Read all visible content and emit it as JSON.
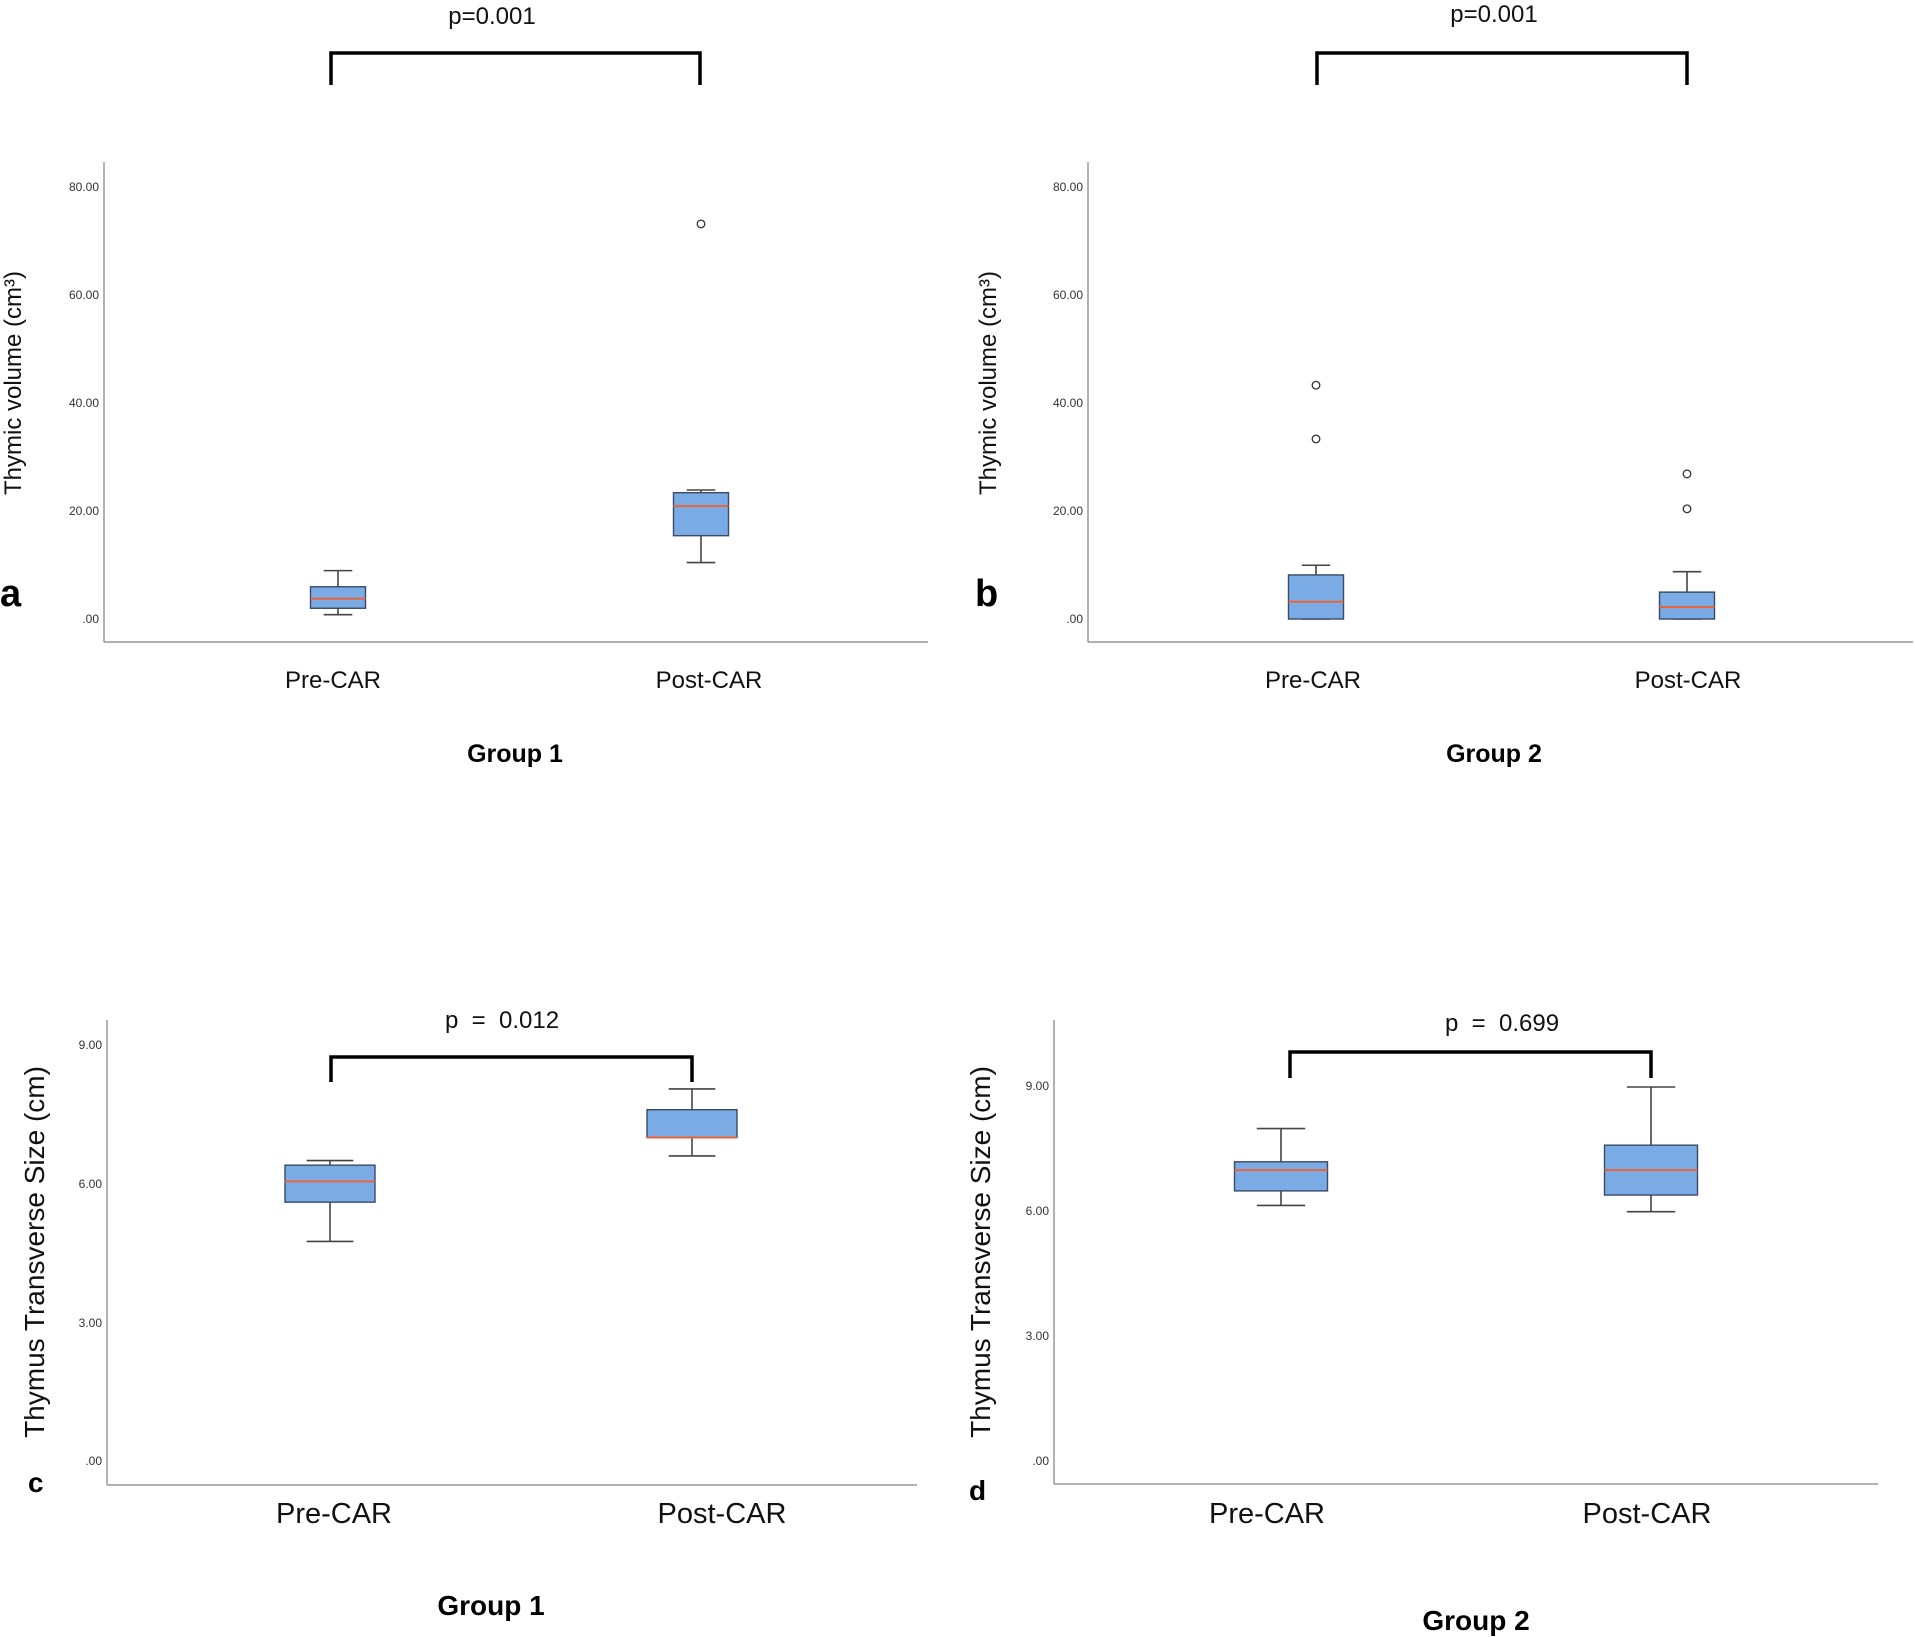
{
  "chart_data": [
    {
      "panel": "a",
      "type": "box",
      "ylabel": "Thymic volume (cm³)",
      "xlabel": "Group 1",
      "ylim": [
        0,
        80
      ],
      "yticks": [
        0,
        20,
        40,
        60,
        80
      ],
      "ytick_labels": [
        ".00",
        "20.00",
        "40.00",
        "60.00",
        "80.00"
      ],
      "categories": [
        "Pre-CAR",
        "Post-CAR"
      ],
      "boxes": [
        {
          "min": 0.8,
          "q1": 2.0,
          "median": 3.8,
          "q3": 6.0,
          "max": 9.0,
          "outliers": []
        },
        {
          "min": 10.5,
          "q1": 15.5,
          "median": 21.0,
          "q3": 23.5,
          "max": 24.0,
          "outliers": [
            73.5
          ]
        }
      ],
      "annotation": "p=0.001"
    },
    {
      "panel": "b",
      "type": "box",
      "ylabel": "Thymic volume (cm³)",
      "xlabel": "Group 2",
      "ylim": [
        0,
        80
      ],
      "yticks": [
        0,
        20,
        40,
        60,
        80
      ],
      "ytick_labels": [
        ".00",
        "20.00",
        "40.00",
        "60.00",
        "80.00"
      ],
      "categories": [
        "Pre-CAR",
        "Post-CAR"
      ],
      "boxes": [
        {
          "min": 0.0,
          "q1": 0.0,
          "median": 3.2,
          "q3": 8.2,
          "max": 10.0,
          "outliers": [
            33.5,
            43.5
          ]
        },
        {
          "min": 0.0,
          "q1": 0.0,
          "median": 2.2,
          "q3": 5.0,
          "max": 8.8,
          "outliers": [
            20.5,
            27.0
          ]
        }
      ],
      "annotation": "p=0.001"
    },
    {
      "panel": "c",
      "type": "box",
      "ylabel": "Thymus Transverse Size (cm)",
      "xlabel": "Group 1",
      "ylim": [
        0,
        9.0
      ],
      "yticks": [
        0,
        3,
        6,
        9
      ],
      "ytick_labels": [
        ".00",
        "3.00",
        "6.00",
        "9.00"
      ],
      "categories": [
        "Pre-CAR",
        "Post-CAR"
      ],
      "boxes": [
        {
          "min": 4.75,
          "q1": 5.6,
          "median": 6.05,
          "q3": 6.4,
          "max": 6.5,
          "outliers": []
        },
        {
          "min": 6.6,
          "q1": 7.0,
          "median": 7.0,
          "q3": 7.6,
          "max": 8.05,
          "outliers": []
        }
      ],
      "annotation": "p  =  0.012"
    },
    {
      "panel": "d",
      "type": "box",
      "ylabel": "Thymus Transverse Size (cm)",
      "xlabel": "Group 2",
      "ylim": [
        0,
        10.5
      ],
      "yticks": [
        0,
        3,
        6,
        9
      ],
      "ytick_labels": [
        ".00",
        "3.00",
        "6.00",
        "9.00"
      ],
      "categories": [
        "Pre-CAR",
        "Post-CAR"
      ],
      "boxes": [
        {
          "min": 6.15,
          "q1": 6.5,
          "median": 7.0,
          "q3": 7.2,
          "max": 8.0,
          "outliers": []
        },
        {
          "min": 6.0,
          "q1": 6.4,
          "median": 7.0,
          "q3": 7.6,
          "max": 9.0,
          "outliers": []
        }
      ],
      "annotation": "p  =  0.699"
    }
  ],
  "colors": {
    "box_fill": "#7aabe4",
    "box_stroke": "#3b4a66",
    "median": "#e8643c",
    "whisker": "#444444",
    "outlier": "#333333"
  }
}
